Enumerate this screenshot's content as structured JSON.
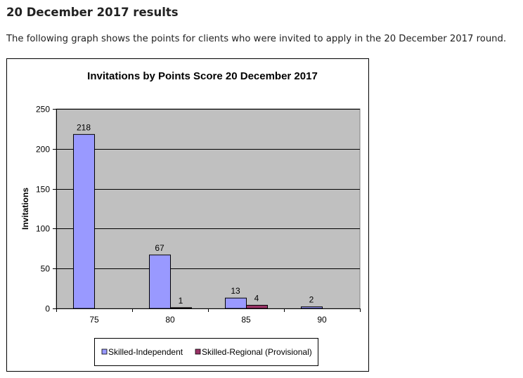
{
  "heading": "20 December 2017 results",
  "intro": "The following graph shows the points for clients who were invited to apply in the 20 December 2017 round.",
  "chart_data": {
    "type": "bar",
    "title": "Invitations by Points Score 20 December 2017",
    "xlabel": "",
    "ylabel": "Invitations",
    "categories": [
      "75",
      "80",
      "85",
      "90"
    ],
    "series": [
      {
        "name": "Skilled-Independent",
        "values": [
          218,
          67,
          13,
          2
        ],
        "labels": [
          "218",
          "67",
          "13",
          "2"
        ],
        "color": "#9999ff"
      },
      {
        "name": "Skilled-Regional (Provisional)",
        "values": [
          0,
          1,
          4,
          0
        ],
        "labels": [
          "",
          "1",
          "4",
          ""
        ],
        "color": "#993366"
      }
    ],
    "ylim": [
      0,
      250
    ],
    "yticks": [
      "0",
      "50",
      "100",
      "150",
      "200",
      "250"
    ],
    "grid": true,
    "plot_background": "#c0c0c0",
    "legend": "bottom"
  }
}
